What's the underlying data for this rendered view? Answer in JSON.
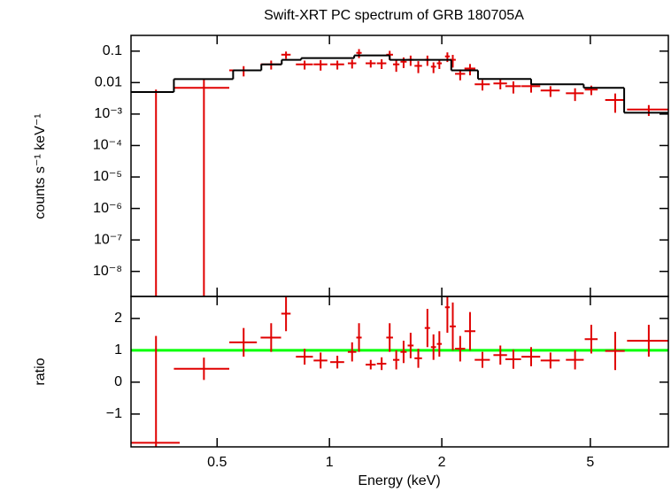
{
  "chart_data": [
    {
      "type": "errorbar",
      "title": "Swift-XRT PC spectrum of GRB 180705A",
      "ylabel": "counts s⁻¹ keV⁻¹",
      "log_y": true,
      "xlim": [
        0.294,
        8.09
      ],
      "ylim": [
        1.6e-09,
        0.316
      ],
      "yticks": [
        {
          "value": 1e-08,
          "label": "10⁻⁸"
        },
        {
          "value": 1e-07,
          "label": "10⁻⁷"
        },
        {
          "value": 1e-06,
          "label": "10⁻⁶"
        },
        {
          "value": 1e-05,
          "label": "10⁻⁵"
        },
        {
          "value": 0.0001,
          "label": "10⁻⁴"
        },
        {
          "value": 0.001,
          "label": "10⁻³"
        },
        0.01,
        0.1
      ],
      "series": [
        {
          "color": "#e00000",
          "x": [
            0.343,
            0.461,
            0.589,
            0.698,
            0.765,
            0.858,
            0.947,
            1.05,
            1.15,
            1.2,
            1.29,
            1.38,
            1.45,
            1.51,
            1.58,
            1.65,
            1.73,
            1.83,
            1.9,
            1.97,
            2.07,
            2.14,
            2.24,
            2.38,
            2.57,
            2.87,
            3.11,
            3.47,
            3.91,
            4.55,
            5.03,
            5.83,
            7.17
          ],
          "xerr": [
            0.054,
            0.078,
            0.05,
            0.044,
            0.022,
            0.045,
            0.04,
            0.045,
            0.03,
            0.02,
            0.04,
            0.04,
            0.03,
            0.03,
            0.03,
            0.03,
            0.04,
            0.03,
            0.03,
            0.03,
            0.03,
            0.04,
            0.07,
            0.08,
            0.12,
            0.12,
            0.15,
            0.2,
            0.23,
            0.25,
            0.2,
            0.35,
            0.9
          ],
          "values": [
            -0.0076,
            0.0068,
            0.0245,
            0.038,
            0.077,
            0.038,
            0.038,
            0.038,
            0.041,
            0.088,
            0.041,
            0.041,
            0.077,
            0.038,
            0.046,
            0.053,
            0.034,
            0.053,
            0.032,
            0.041,
            0.068,
            0.053,
            0.019,
            0.028,
            0.0088,
            0.0094,
            0.0077,
            0.0077,
            0.0056,
            0.0046,
            0.006,
            0.0028,
            0.0014
          ],
          "yerr": [
            0.0136,
            0.0068,
            0.0088,
            0.012,
            0.02,
            0.012,
            0.014,
            0.012,
            0.013,
            0.028,
            0.011,
            0.014,
            0.025,
            0.016,
            0.017,
            0.019,
            0.014,
            0.019,
            0.012,
            0.014,
            0.023,
            0.023,
            0.0072,
            0.011,
            0.0032,
            0.0033,
            0.0032,
            0.0029,
            0.0021,
            0.002,
            0.002,
            0.0017,
            0.00053
          ]
        },
        {
          "style": "step",
          "color": "#000000",
          "bins": [
            0.294,
            0.383,
            0.552,
            0.657,
            0.745,
            0.84,
            1.165,
            1.45,
            2.12,
            2.5,
            3.47,
            4.8,
            6.16,
            8.09
          ],
          "values": [
            0.005,
            0.0129,
            0.0245,
            0.038,
            0.053,
            0.06,
            0.073,
            0.053,
            0.0245,
            0.013,
            0.0088,
            0.0068,
            0.0011
          ]
        }
      ]
    },
    {
      "type": "errorbar",
      "xlabel": "Energy (keV)",
      "ylabel": "ratio",
      "xlim": [
        0.294,
        8.09
      ],
      "ylim": [
        -2.03,
        2.69
      ],
      "xticks": [
        0.5,
        1,
        2,
        5
      ],
      "yticks": [
        {
          "value": -1,
          "label": "−1"
        },
        0,
        1,
        2
      ],
      "reference_line": {
        "value": 1,
        "color": "#00ff00"
      },
      "series": [
        {
          "color": "#e00000",
          "x": [
            0.343,
            0.461,
            0.589,
            0.698,
            0.765,
            0.858,
            0.947,
            1.05,
            1.15,
            1.2,
            1.29,
            1.38,
            1.45,
            1.51,
            1.58,
            1.65,
            1.73,
            1.83,
            1.9,
            1.97,
            2.07,
            2.14,
            2.24,
            2.38,
            2.57,
            2.87,
            3.11,
            3.47,
            3.91,
            4.55,
            5.03,
            5.83,
            7.17
          ],
          "xerr": [
            0.054,
            0.078,
            0.05,
            0.044,
            0.022,
            0.045,
            0.04,
            0.045,
            0.03,
            0.02,
            0.04,
            0.04,
            0.03,
            0.03,
            0.03,
            0.03,
            0.04,
            0.03,
            0.03,
            0.03,
            0.03,
            0.04,
            0.07,
            0.08,
            0.12,
            0.12,
            0.15,
            0.2,
            0.23,
            0.25,
            0.2,
            0.35,
            0.9
          ],
          "values": [
            -1.9,
            0.42,
            1.25,
            1.4,
            2.15,
            0.8,
            0.68,
            0.63,
            0.95,
            1.4,
            0.55,
            0.58,
            1.4,
            0.7,
            0.95,
            1.15,
            0.75,
            1.7,
            1.1,
            1.2,
            2.35,
            1.75,
            1.05,
            1.6,
            0.7,
            0.85,
            0.72,
            0.8,
            0.68,
            0.7,
            1.35,
            0.98,
            1.3
          ],
          "yerr": [
            3.35,
            0.35,
            0.45,
            0.45,
            0.55,
            0.25,
            0.25,
            0.2,
            0.3,
            0.45,
            0.15,
            0.2,
            0.45,
            0.3,
            0.35,
            0.4,
            0.3,
            0.6,
            0.4,
            0.4,
            0.8,
            0.75,
            0.4,
            0.6,
            0.25,
            0.3,
            0.3,
            0.3,
            0.25,
            0.3,
            0.45,
            0.6,
            0.5
          ]
        }
      ]
    }
  ]
}
